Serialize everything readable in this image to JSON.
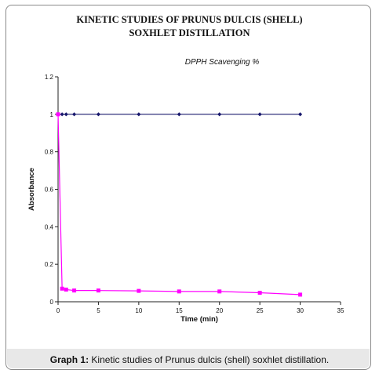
{
  "figure": {
    "title_line1": "KINETIC STUDIES OF PRUNUS DULCIS (SHELL)",
    "title_line2": "SOXHLET DISTILLATION",
    "caption_label": "Graph 1:",
    "caption_text": " Kinetic studies of Prunus dulcis (shell) soxhlet distillation."
  },
  "chart_data": {
    "type": "line",
    "title": "DPPH Scavenging %",
    "xlabel": "Time (min)",
    "ylabel": "Absorbance",
    "xlim": [
      0,
      35
    ],
    "ylim": [
      0,
      1.2
    ],
    "xticks": [
      0,
      5,
      10,
      15,
      20,
      25,
      30,
      35
    ],
    "yticks": [
      0,
      0.2,
      0.4,
      0.6,
      0.8,
      1,
      1.2
    ],
    "grid": false,
    "legend": "none",
    "series": [
      {
        "color": "#1a1a6e",
        "marker": "diamond",
        "x": [
          0,
          0.5,
          1,
          2,
          5,
          10,
          15,
          20,
          25,
          30
        ],
        "y": [
          1,
          1,
          1,
          1,
          1,
          1,
          1,
          1,
          1,
          1
        ]
      },
      {
        "color": "#ff00ff",
        "marker": "square",
        "x": [
          0,
          0.5,
          1,
          2,
          5,
          10,
          15,
          20,
          25,
          30
        ],
        "y": [
          1,
          0.07,
          0.065,
          0.06,
          0.06,
          0.058,
          0.055,
          0.055,
          0.048,
          0.038
        ]
      }
    ]
  }
}
